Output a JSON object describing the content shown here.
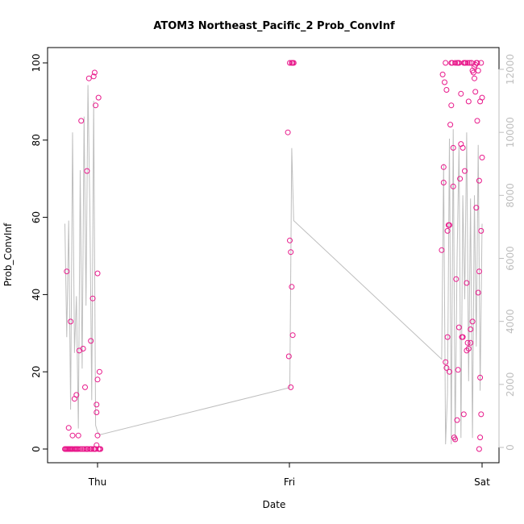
{
  "chart_data": {
    "type": "scatter",
    "title": "ATOM3 Northeast_Pacific_2 Prob_ConvInf",
    "xlabel": "Date",
    "ylabel": "Prob_ConvInf",
    "x_tick_labels": [
      "Thu",
      "Fri",
      "Sat"
    ],
    "y_ticks": [
      0,
      20,
      40,
      60,
      80,
      100
    ],
    "y2_ticks": [
      0,
      2000,
      4000,
      6000,
      8000,
      10000,
      12000
    ],
    "ylim": [
      0,
      100
    ],
    "y2lim": [
      0,
      12000
    ],
    "x_day_range": [
      -0.15,
      2.05
    ],
    "grid": false,
    "colors": {
      "points": "#e8198b",
      "line": "#bebebe",
      "axis": "#000000",
      "right_axis": "#bebebe"
    },
    "series": [
      {
        "type": "points",
        "x": [
          -0.17,
          -0.165,
          -0.16,
          -0.155,
          -0.15,
          -0.145,
          -0.14,
          -0.135,
          -0.13,
          -0.12,
          -0.115,
          -0.11,
          -0.105,
          -0.1,
          -0.09,
          -0.08,
          -0.07,
          -0.06,
          -0.055,
          -0.05,
          -0.04,
          -0.03,
          -0.02,
          -0.015,
          -0.01,
          -0.005,
          0.0,
          0.005,
          0.01,
          0.015,
          -0.1,
          -0.12,
          -0.14,
          -0.16,
          -0.15,
          -0.13,
          -0.11,
          -0.095,
          -0.085,
          -0.075,
          -0.065,
          -0.055,
          -0.045,
          -0.035,
          -0.025,
          -0.015,
          -0.005,
          0.005,
          0.01,
          -0.02,
          -0.01,
          0.0,
          -0.005,
          0.0,
          0.99,
          1.0,
          1.01,
          1.015,
          1.02,
          0.995,
          1.005,
          1.01,
          1.015,
          1.0,
          1.005,
          1.01,
          1.79,
          1.8,
          1.805,
          1.81,
          1.815,
          1.82,
          1.825,
          1.83,
          1.835,
          1.84,
          1.845,
          1.85,
          1.86,
          1.865,
          1.87,
          1.875,
          1.88,
          1.885,
          1.89,
          1.895,
          1.9,
          1.905,
          1.91,
          1.915,
          1.92,
          1.925,
          1.93,
          1.935,
          1.94,
          1.945,
          1.95,
          1.955,
          1.96,
          1.965,
          1.97,
          1.975,
          1.98,
          1.985,
          1.99,
          1.995,
          2.0,
          1.795,
          1.8,
          1.81,
          1.815,
          1.82,
          1.83,
          1.84,
          1.85,
          1.855,
          1.86,
          1.87,
          1.875,
          1.88,
          1.89,
          1.9,
          1.905,
          1.91,
          1.92,
          1.925,
          1.93,
          1.94,
          1.945,
          1.95,
          1.96,
          1.965,
          1.97,
          1.975,
          1.98,
          1.985,
          1.99,
          1.995,
          2.0,
          1.985,
          1.99,
          1.995
        ],
        "y": [
          0,
          0,
          0,
          0,
          0,
          0,
          0,
          0,
          0,
          0,
          0,
          0,
          0,
          0,
          0,
          0,
          0,
          0,
          0,
          0,
          0,
          0,
          0,
          0,
          0,
          1,
          3.5,
          0,
          0,
          0,
          3.5,
          13,
          33,
          46,
          5.5,
          3.5,
          14,
          25.5,
          85,
          26,
          16,
          72,
          96,
          28,
          39,
          97.5,
          9.5,
          91,
          20,
          96.5,
          89,
          18,
          11.5,
          45.5,
          82,
          100,
          100,
          100,
          100,
          24,
          16,
          42,
          29.5,
          54,
          51,
          100,
          51.5,
          73,
          95,
          100,
          93,
          29,
          58,
          58,
          84,
          89,
          100,
          68,
          100,
          44,
          100,
          20.5,
          100,
          70,
          92,
          29,
          29,
          100,
          100,
          100,
          25.5,
          100,
          90,
          100,
          27.5,
          100,
          98,
          97.5,
          99,
          99.5,
          100,
          85,
          98,
          46,
          18.5,
          56.5,
          75.5,
          97,
          69,
          22.5,
          21,
          56.5,
          20,
          100,
          78,
          3,
          2.5,
          7.5,
          100,
          31.5,
          79,
          78,
          9,
          72,
          43,
          27.5,
          26,
          31,
          100,
          33,
          96,
          92.5,
          62.5,
          100,
          40.5,
          69.5,
          90,
          100,
          91,
          0,
          3,
          9
        ]
      },
      {
        "type": "line",
        "axis": "right",
        "x": [
          -0.17,
          -0.16,
          -0.15,
          -0.14,
          -0.13,
          -0.12,
          -0.11,
          -0.1,
          -0.09,
          -0.08,
          -0.07,
          -0.06,
          -0.05,
          -0.04,
          -0.03,
          -0.02,
          -0.01,
          0.0,
          0.01,
          1.0,
          1.01,
          1.02,
          1.79,
          1.8,
          1.81,
          1.82,
          1.83,
          1.84,
          1.85,
          1.86,
          1.87,
          1.88,
          1.89,
          1.9,
          1.91,
          1.92,
          1.93,
          1.94,
          1.95,
          1.96,
          1.97,
          1.98,
          1.99,
          2.0
        ],
        "y": [
          7100,
          3500,
          7200,
          1200,
          10000,
          3000,
          4800,
          600,
          8800,
          2500,
          10500,
          4500,
          11500,
          7500,
          1500,
          11000,
          700,
          500,
          400,
          1900,
          9500,
          7200,
          2800,
          9000,
          100,
          1700,
          9800,
          100,
          10100,
          200,
          6000,
          9600,
          300,
          8000,
          4700,
          10000,
          2100,
          7900,
          300,
          8000,
          3200,
          9600,
          1800,
          7100
        ]
      }
    ]
  }
}
